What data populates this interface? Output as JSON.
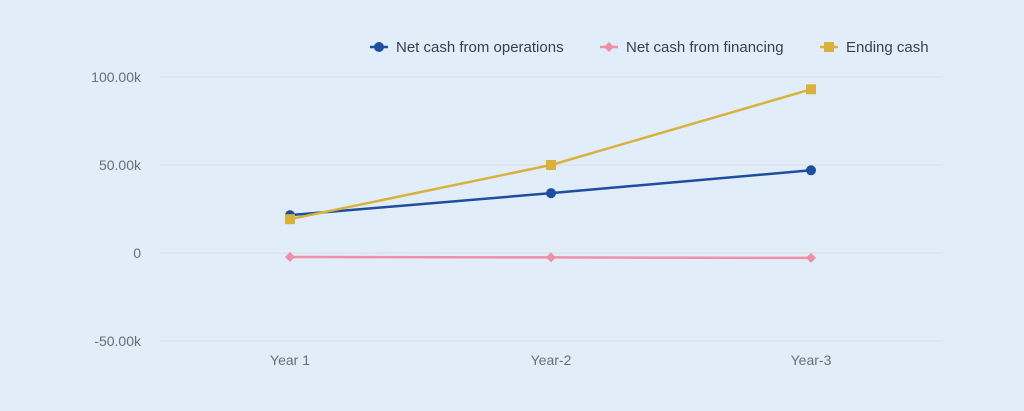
{
  "chart_data": {
    "type": "line",
    "title": "",
    "xlabel": "",
    "ylabel": "",
    "categories": [
      "Year 1",
      "Year-2",
      "Year-3"
    ],
    "series": [
      {
        "name": "Net cash from operations",
        "values": [
          21500,
          34000,
          47000
        ],
        "color": "#1f4e9e",
        "marker": "circle"
      },
      {
        "name": "Net cash from financing",
        "values": [
          -2300,
          -2500,
          -2800
        ],
        "color": "#f08fa8",
        "marker": "diamond"
      },
      {
        "name": "Ending cash",
        "values": [
          19200,
          50000,
          93000
        ],
        "color": "#d9b23e",
        "marker": "square"
      }
    ],
    "y_ticks": [
      100000,
      50000,
      0,
      -50000
    ],
    "y_tick_labels": [
      "100.00k",
      "50.00k",
      "0",
      "-50.00k"
    ],
    "ylim": [
      -50000,
      100000
    ],
    "grid": true,
    "legend_position": "top-right"
  },
  "colors": {
    "background": "#e1eefa",
    "grid": "#d9dde1"
  }
}
